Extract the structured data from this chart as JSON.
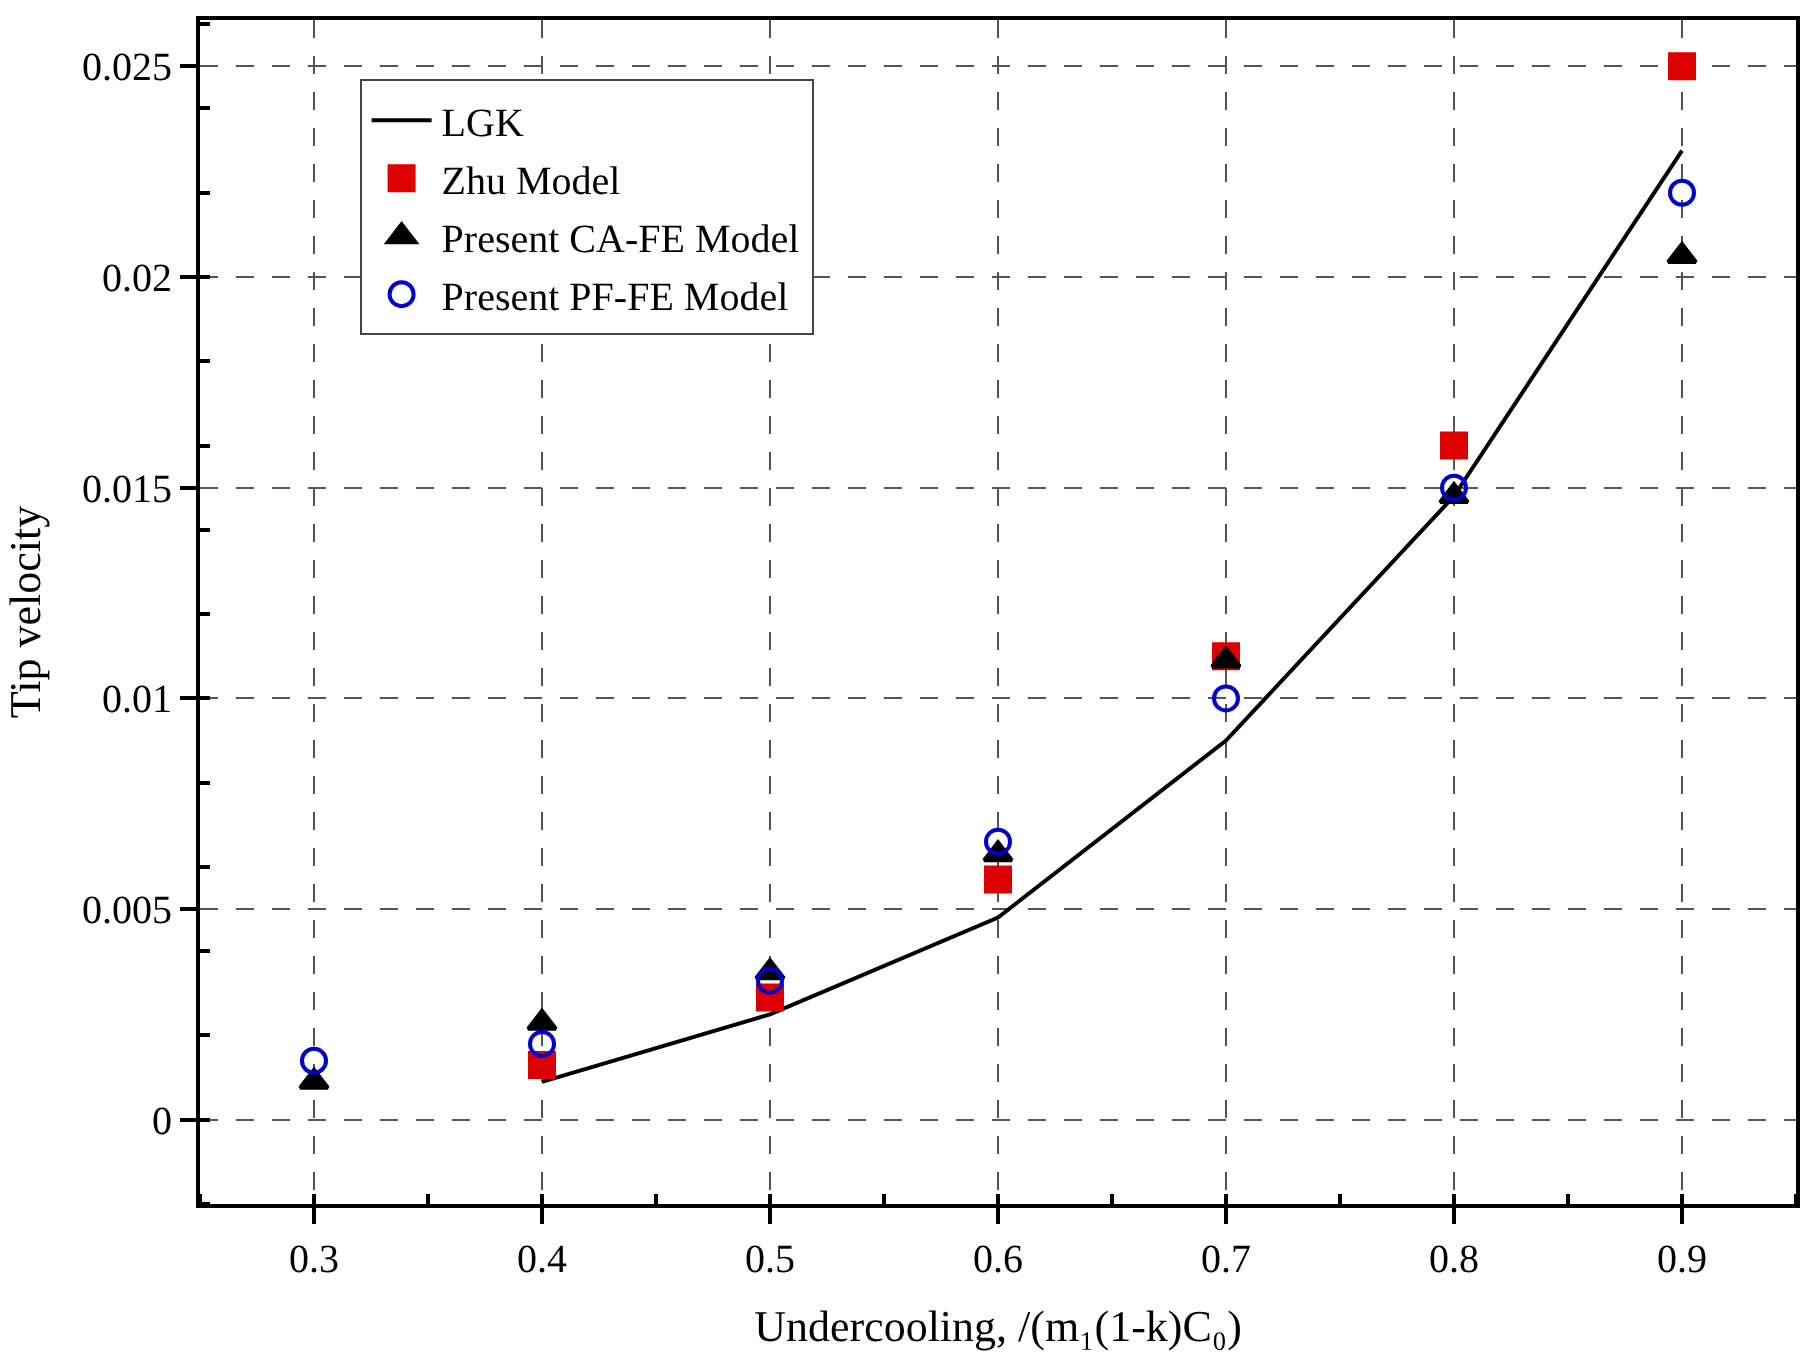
{
  "chart_data": {
    "type": "scatter",
    "xlabel": "Undercooling, /(m₁(1-k)C₀)",
    "ylabel": "Tip velocity",
    "xlim": [
      0.25,
      0.95
    ],
    "xticks": [
      0.3,
      0.4,
      0.5,
      0.6,
      0.7,
      0.8,
      0.9
    ],
    "ylim": [
      -0.002,
      0.0261
    ],
    "yticks": [
      0,
      0.005,
      0.01,
      0.015,
      0.02,
      0.025
    ],
    "grid": true,
    "legend": "top left",
    "series": [
      {
        "name": "LGK",
        "type": "line",
        "color": "#000000",
        "marker": "none",
        "line_style": "solid",
        "x": [
          0.4,
          0.5,
          0.6,
          0.7,
          0.8,
          0.9
        ],
        "values": [
          0.0009,
          0.0025,
          0.0048,
          0.009,
          0.0148,
          0.023
        ]
      },
      {
        "name": "Zhu Model",
        "color": "#dd0000",
        "marker": "square",
        "x": [
          0.4,
          0.5,
          0.6,
          0.7,
          0.8,
          0.9
        ],
        "values": [
          0.0013,
          0.0029,
          0.0057,
          0.011,
          0.016,
          0.025
        ]
      },
      {
        "name": "Present CA-FE Model",
        "color": "#000000",
        "marker": "triangle",
        "x": [
          0.3,
          0.4,
          0.5,
          0.6,
          0.7,
          0.8,
          0.9
        ],
        "values": [
          0.0009,
          0.0023,
          0.0035,
          0.0063,
          0.0109,
          0.0148,
          0.0205
        ]
      },
      {
        "name": "Present PF-FE Model",
        "color": "#0000cc",
        "marker": "circle-open",
        "x": [
          0.3,
          0.4,
          0.5,
          0.6,
          0.7,
          0.8,
          0.9
        ],
        "values": [
          0.0014,
          0.0018,
          0.0033,
          0.0066,
          0.01,
          0.015,
          0.022
        ]
      }
    ]
  }
}
